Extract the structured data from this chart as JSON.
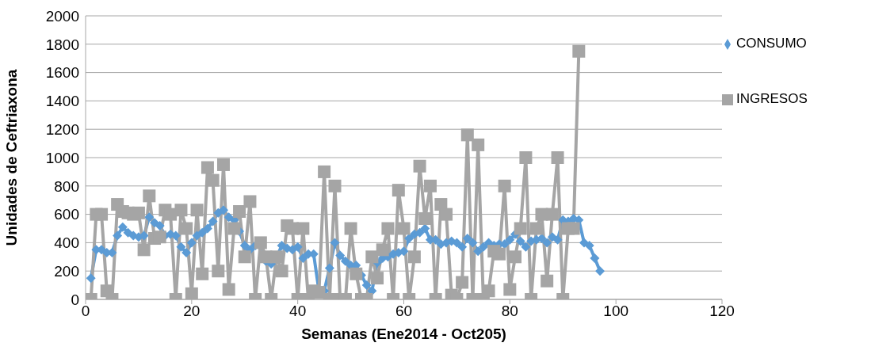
{
  "chart_data": {
    "type": "line",
    "xlabel": "Semanas (Ene2014 - Oct205)",
    "ylabel": "Unidades de Ceftriaxona",
    "xlim": [
      0,
      120
    ],
    "xticks": [
      0,
      20,
      40,
      60,
      80,
      100,
      120
    ],
    "ylim": [
      0,
      2000
    ],
    "yticks": [
      0,
      200,
      400,
      600,
      800,
      1000,
      1200,
      1400,
      1600,
      1800,
      2000
    ],
    "grid": "y",
    "legend": "top right",
    "line_style": "solid",
    "series": [
      {
        "name": "CONSUMO",
        "color": "#5b9bd5",
        "marker": "diamond",
        "x": [
          1,
          2,
          3,
          4,
          5,
          6,
          7,
          8,
          9,
          10,
          11,
          12,
          13,
          14,
          15,
          16,
          17,
          18,
          19,
          20,
          21,
          22,
          23,
          24,
          25,
          26,
          27,
          28,
          29,
          30,
          31,
          32,
          33,
          34,
          35,
          36,
          37,
          38,
          39,
          40,
          41,
          42,
          43,
          44,
          45,
          46,
          47,
          48,
          49,
          50,
          51,
          52,
          53,
          54,
          55,
          56,
          57,
          58,
          59,
          60,
          61,
          62,
          63,
          64,
          65,
          66,
          67,
          68,
          69,
          70,
          71,
          72,
          73,
          74,
          75,
          76,
          77,
          78,
          79,
          80,
          81,
          82,
          83,
          84,
          85,
          86,
          87,
          88,
          89,
          90,
          91,
          92,
          93,
          94,
          95,
          96,
          97
        ],
        "values": [
          150,
          350,
          350,
          330,
          330,
          450,
          510,
          470,
          450,
          440,
          450,
          580,
          540,
          520,
          450,
          460,
          450,
          370,
          330,
          400,
          450,
          470,
          500,
          550,
          610,
          630,
          580,
          560,
          480,
          380,
          350,
          380,
          400,
          270,
          250,
          300,
          380,
          360,
          350,
          370,
          290,
          320,
          320,
          60,
          60,
          220,
          400,
          310,
          270,
          240,
          240,
          170,
          100,
          60,
          260,
          290,
          300,
          320,
          330,
          340,
          430,
          460,
          470,
          500,
          420,
          420,
          390,
          400,
          410,
          400,
          370,
          430,
          400,
          340,
          370,
          400,
          380,
          390,
          390,
          420,
          460,
          410,
          370,
          410,
          420,
          430,
          400,
          440,
          420,
          560,
          550,
          570,
          560,
          400,
          380,
          290,
          200
        ]
      },
      {
        "name": "INGRESOS",
        "color": "#a5a5a5",
        "marker": "square",
        "x": [
          1,
          2,
          3,
          4,
          5,
          6,
          7,
          8,
          9,
          10,
          11,
          12,
          13,
          14,
          15,
          16,
          17,
          18,
          19,
          20,
          21,
          22,
          23,
          24,
          25,
          26,
          27,
          28,
          29,
          30,
          31,
          32,
          33,
          34,
          35,
          36,
          37,
          38,
          39,
          40,
          41,
          42,
          43,
          44,
          45,
          46,
          47,
          48,
          49,
          50,
          51,
          52,
          53,
          54,
          55,
          56,
          57,
          58,
          59,
          60,
          61,
          62,
          63,
          64,
          65,
          66,
          67,
          68,
          69,
          70,
          71,
          72,
          73,
          74,
          75,
          76,
          77,
          78,
          79,
          80,
          81,
          82,
          83,
          84,
          85,
          86,
          87,
          88,
          89,
          90,
          91,
          92,
          93
        ],
        "values": [
          0,
          600,
          600,
          60,
          0,
          670,
          620,
          610,
          600,
          610,
          350,
          730,
          430,
          440,
          630,
          600,
          0,
          630,
          500,
          40,
          630,
          180,
          930,
          840,
          200,
          950,
          70,
          500,
          620,
          300,
          690,
          0,
          400,
          300,
          0,
          300,
          200,
          520,
          500,
          0,
          500,
          0,
          60,
          50,
          900,
          0,
          800,
          0,
          0,
          500,
          180,
          0,
          0,
          300,
          150,
          350,
          500,
          0,
          770,
          500,
          0,
          300,
          940,
          570,
          800,
          0,
          670,
          600,
          30,
          0,
          120,
          1160,
          0,
          1090,
          0,
          60,
          340,
          320,
          800,
          70,
          300,
          500,
          1000,
          0,
          500,
          600,
          130,
          600,
          1000,
          0,
          500,
          500,
          1750
        ]
      }
    ]
  }
}
